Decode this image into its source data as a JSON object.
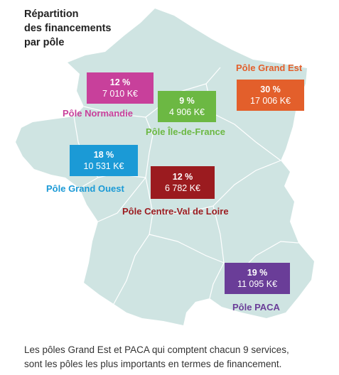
{
  "title": {
    "line1": "Répartition",
    "line2": "des financements",
    "line3": "par pôle"
  },
  "map": {
    "land_color": "#cfe4e2",
    "border_color": "#ffffff"
  },
  "poles": [
    {
      "id": "normandie",
      "name": "Pôle Normandie",
      "percent": "12 %",
      "amount": "7 010 K€",
      "color": "#c8409b",
      "share": 12
    },
    {
      "id": "ile-de-france",
      "name": "Pôle Île-de-France",
      "percent": "9 %",
      "amount": "4 906 K€",
      "color": "#6cb843",
      "share": 9
    },
    {
      "id": "grand-est",
      "name": "Pôle Grand Est",
      "percent": "30 %",
      "amount": "17 006 K€",
      "color": "#e35f2b",
      "share": 30
    },
    {
      "id": "grand-ouest",
      "name": "Pôle Grand Ouest",
      "percent": "18 %",
      "amount": "10 531 K€",
      "color": "#1b9ad6",
      "share": 18
    },
    {
      "id": "centre-val-de-loire",
      "name": "Pôle Centre-Val de Loire",
      "percent": "12 %",
      "amount": "6 782 K€",
      "color": "#9b1b1f",
      "share": 12
    },
    {
      "id": "paca",
      "name": "Pôle PACA",
      "percent": "19 %",
      "amount": "11 095 K€",
      "color": "#6a3d98",
      "share": 19
    }
  ],
  "caption": {
    "line1": "Les pôles Grand Est et PACA qui comptent chacun 9 services,",
    "line2": "sont les pôles les plus importants en termes de financement."
  }
}
